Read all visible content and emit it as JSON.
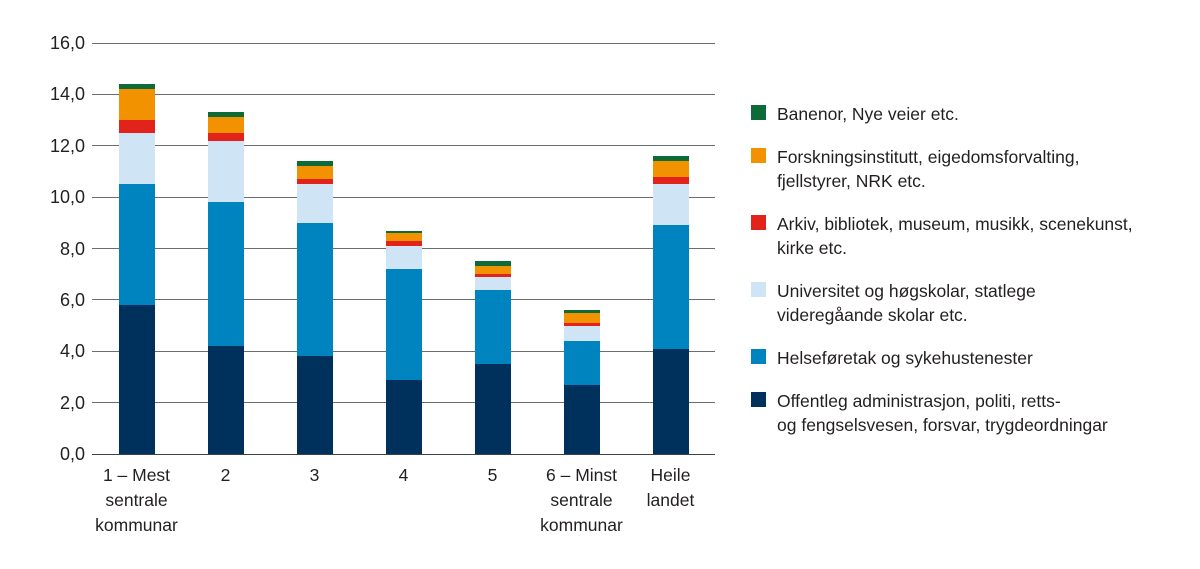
{
  "figure": {
    "background": "#ffffff",
    "text_color": "#231f20",
    "gridline_color": "#6a6d72"
  },
  "chart_data": {
    "type": "bar",
    "stacked": true,
    "title": "",
    "xlabel": "",
    "ylabel": "",
    "grid": true,
    "legend_position": "right",
    "legend_order": "top-is-last-series",
    "ylim": [
      0,
      16
    ],
    "ytick_step": 2,
    "yticks": [
      "0,0",
      "2,0",
      "4,0",
      "6,0",
      "8,0",
      "10,0",
      "12,0",
      "14,0",
      "16,0"
    ],
    "categories": [
      "1 – Mest\nsentrale\nkommunar",
      "2",
      "3",
      "4",
      "5",
      "6 – Minst\nsentrale\nkommunar",
      "Heile\nlandet"
    ],
    "series": [
      {
        "name": "Offentleg administrasjon, politi, retts-\nog fengselsvesen, forsvar, trygdeordningar",
        "color": "#00315d",
        "values": [
          5.8,
          4.2,
          3.8,
          2.9,
          3.5,
          2.7,
          4.1
        ]
      },
      {
        "name": "Helseføretak og sykehustenester",
        "color": "#0084bf",
        "values": [
          4.7,
          5.6,
          5.2,
          4.3,
          2.9,
          1.7,
          4.8
        ]
      },
      {
        "name": "Universitet og høgskolar, statlege\nvideregåande skolar etc.",
        "color": "#cfe5f5",
        "values": [
          2.0,
          2.4,
          1.5,
          0.9,
          0.5,
          0.6,
          1.6
        ]
      },
      {
        "name": "Arkiv, bibliotek, museum, musikk, scenekunst,\nkirke etc.",
        "color": "#e2231b",
        "values": [
          0.5,
          0.3,
          0.2,
          0.2,
          0.1,
          0.1,
          0.3
        ]
      },
      {
        "name": "Forskningsinstitutt, eigedomsforvalting,\nfjellstyrer, NRK etc.",
        "color": "#f39200",
        "values": [
          1.2,
          0.6,
          0.5,
          0.3,
          0.3,
          0.4,
          0.6
        ]
      },
      {
        "name": "Banenor, Nye veier etc.",
        "color": "#0c6b38",
        "values": [
          0.2,
          0.2,
          0.2,
          0.1,
          0.2,
          0.1,
          0.2
        ]
      }
    ],
    "totals": [
      14.4,
      13.3,
      11.4,
      8.7,
      7.5,
      5.6,
      11.6
    ]
  }
}
